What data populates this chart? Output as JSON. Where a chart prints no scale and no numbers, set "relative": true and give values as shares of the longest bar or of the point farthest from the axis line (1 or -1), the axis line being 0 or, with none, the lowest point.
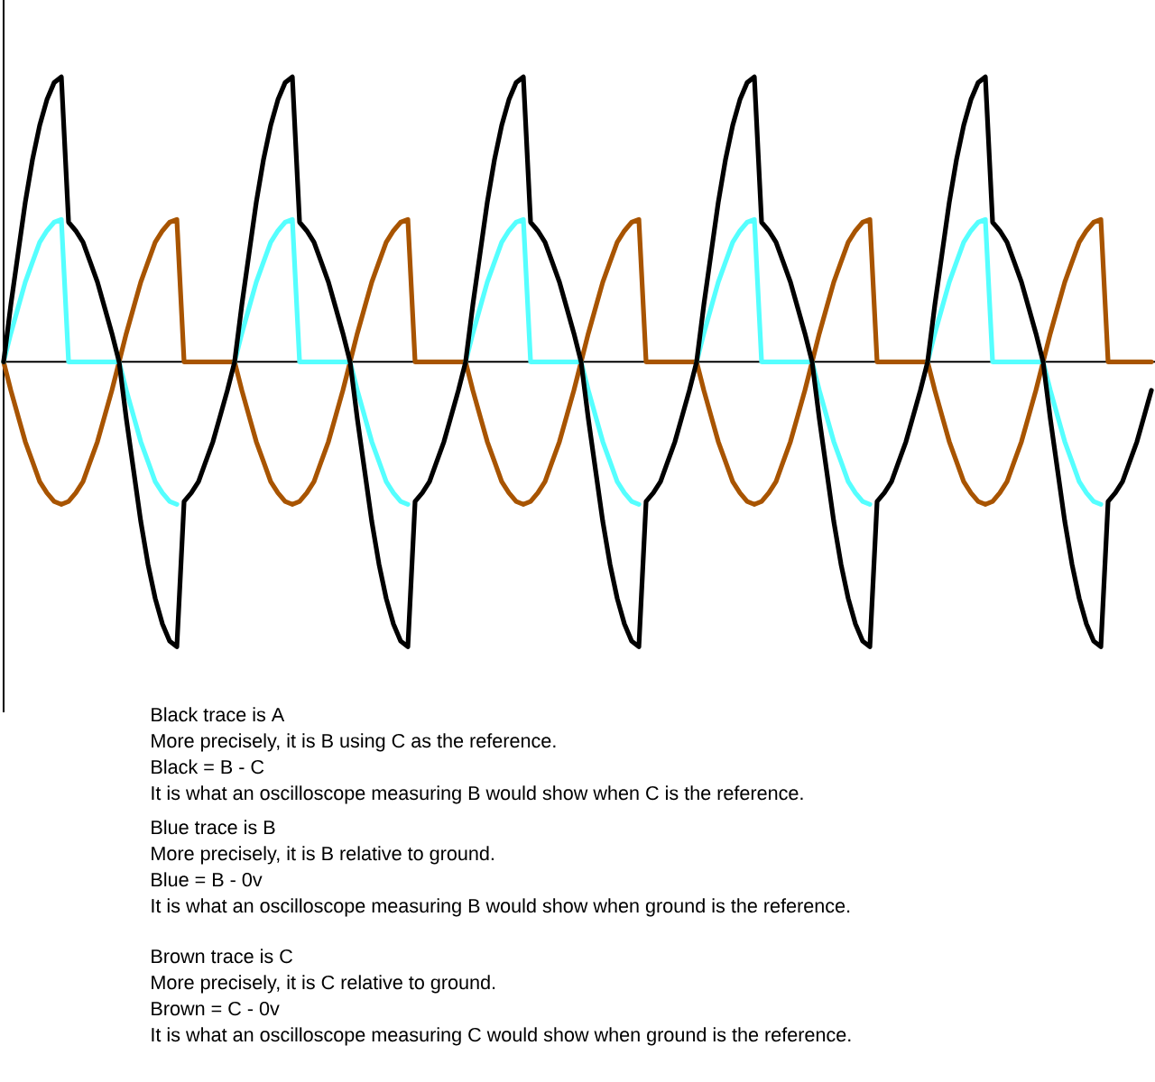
{
  "chart_data": {
    "type": "line",
    "relative": true,
    "categories": [
      null,
      null,
      null,
      null,
      null,
      null,
      null,
      null,
      null,
      null,
      null,
      null,
      null,
      null,
      null,
      null,
      null,
      null,
      null,
      null,
      null,
      null,
      null,
      null,
      null,
      null,
      null,
      null,
      null,
      null,
      null,
      null,
      null,
      null,
      null,
      null,
      null,
      null,
      null,
      null,
      null,
      null,
      null,
      null,
      null,
      null,
      null,
      null,
      null,
      null,
      null,
      null,
      null,
      null,
      null,
      null,
      null,
      null,
      null,
      null,
      null,
      null,
      null,
      null,
      null,
      null,
      null,
      null,
      null,
      null,
      null,
      null,
      null,
      null,
      null,
      null,
      null,
      null,
      null,
      null,
      null,
      null,
      null,
      null,
      null,
      null,
      null,
      null,
      null,
      null,
      null,
      null,
      null,
      null,
      null,
      null,
      null,
      null,
      null,
      null,
      null,
      null,
      null,
      null,
      null,
      null,
      null,
      null,
      null,
      null,
      null,
      null,
      null,
      null,
      null,
      null,
      null,
      null,
      null,
      null,
      null,
      null,
      null,
      null,
      null,
      null,
      null,
      null,
      null,
      null,
      null,
      null,
      null,
      null,
      null,
      null,
      null,
      null,
      null,
      null,
      null,
      null,
      null,
      null,
      null,
      null,
      null,
      null,
      null,
      null,
      null,
      null,
      null,
      null,
      null,
      null,
      null,
      null,
      null,
      null
    ],
    "series": [
      {
        "color": "#000000",
        "values": [
          0,
          0.2,
          0.38,
          0.56,
          0.71,
          0.83,
          0.92,
          0.98,
          1,
          0.49,
          0.46,
          0.42,
          0.35,
          0.28,
          0.19,
          0.1,
          0,
          -0.2,
          -0.38,
          -0.56,
          -0.71,
          -0.83,
          -0.92,
          -0.98,
          -1,
          -0.49,
          -0.46,
          -0.42,
          -0.35,
          -0.28,
          -0.19,
          -0.1,
          0,
          0.2,
          0.38,
          0.56,
          0.71,
          0.83,
          0.92,
          0.98,
          1,
          0.49,
          0.46,
          0.42,
          0.35,
          0.28,
          0.19,
          0.1,
          0,
          -0.2,
          -0.38,
          -0.56,
          -0.71,
          -0.83,
          -0.92,
          -0.98,
          -1,
          -0.49,
          -0.46,
          -0.42,
          -0.35,
          -0.28,
          -0.19,
          -0.1,
          0,
          0.2,
          0.38,
          0.56,
          0.71,
          0.83,
          0.92,
          0.98,
          1,
          0.49,
          0.46,
          0.42,
          0.35,
          0.28,
          0.19,
          0.1,
          0,
          -0.2,
          -0.38,
          -0.56,
          -0.71,
          -0.83,
          -0.92,
          -0.98,
          -1,
          -0.49,
          -0.46,
          -0.42,
          -0.35,
          -0.28,
          -0.19,
          -0.1,
          0,
          0.2,
          0.38,
          0.56,
          0.71,
          0.83,
          0.92,
          0.98,
          1,
          0.49,
          0.46,
          0.42,
          0.35,
          0.28,
          0.19,
          0.1,
          0,
          -0.2,
          -0.38,
          -0.56,
          -0.71,
          -0.83,
          -0.92,
          -0.98,
          -1,
          -0.49,
          -0.46,
          -0.42,
          -0.35,
          -0.28,
          -0.19,
          -0.1,
          0,
          0.2,
          0.38,
          0.56,
          0.71,
          0.83,
          0.92,
          0.98,
          1,
          0.49,
          0.46,
          0.42,
          0.35,
          0.28,
          0.19,
          0.1,
          0,
          -0.2,
          -0.38,
          -0.56,
          -0.71,
          -0.83,
          -0.92,
          -0.98,
          -1,
          -0.49,
          -0.46,
          -0.42,
          -0.35,
          -0.28,
          -0.19,
          -0.1
        ]
      },
      {
        "color": "#55ffff",
        "values": [
          0,
          0.1,
          0.19,
          0.28,
          0.35,
          0.42,
          0.46,
          0.49,
          0.5,
          0,
          0,
          0,
          0,
          0,
          0,
          0,
          0,
          -0.1,
          -0.19,
          -0.28,
          -0.35,
          -0.42,
          -0.46,
          -0.49,
          -0.5,
          null,
          null,
          null,
          null,
          null,
          null,
          null,
          0,
          0.1,
          0.19,
          0.28,
          0.35,
          0.42,
          0.46,
          0.49,
          0.5,
          0,
          0,
          0,
          0,
          0,
          0,
          0,
          0,
          -0.1,
          -0.19,
          -0.28,
          -0.35,
          -0.42,
          -0.46,
          -0.49,
          -0.5,
          null,
          null,
          null,
          null,
          null,
          null,
          null,
          0,
          0.1,
          0.19,
          0.28,
          0.35,
          0.42,
          0.46,
          0.49,
          0.5,
          0,
          0,
          0,
          0,
          0,
          0,
          0,
          0,
          -0.1,
          -0.19,
          -0.28,
          -0.35,
          -0.42,
          -0.46,
          -0.49,
          -0.5,
          null,
          null,
          null,
          null,
          null,
          null,
          null,
          0,
          0.1,
          0.19,
          0.28,
          0.35,
          0.42,
          0.46,
          0.49,
          0.5,
          0,
          0,
          0,
          0,
          0,
          0,
          0,
          0,
          -0.1,
          -0.19,
          -0.28,
          -0.35,
          -0.42,
          -0.46,
          -0.49,
          -0.5,
          null,
          null,
          null,
          null,
          null,
          null,
          null,
          0,
          0.1,
          0.19,
          0.28,
          0.35,
          0.42,
          0.46,
          0.49,
          0.5,
          0,
          0,
          0,
          0,
          0,
          0,
          0,
          0,
          -0.1,
          -0.19,
          -0.28,
          -0.35,
          -0.42,
          -0.46,
          -0.49,
          -0.5,
          null,
          null,
          null,
          null,
          null,
          null,
          null
        ]
      },
      {
        "color": "#a85400",
        "values": [
          0,
          -0.1,
          -0.19,
          -0.28,
          -0.35,
          -0.42,
          -0.46,
          -0.49,
          -0.5,
          -0.49,
          -0.46,
          -0.42,
          -0.35,
          -0.28,
          -0.19,
          -0.1,
          0,
          0.1,
          0.19,
          0.28,
          0.35,
          0.42,
          0.46,
          0.49,
          0.5,
          0,
          0,
          0,
          0,
          0,
          0,
          0,
          0,
          -0.1,
          -0.19,
          -0.28,
          -0.35,
          -0.42,
          -0.46,
          -0.49,
          -0.5,
          -0.49,
          -0.46,
          -0.42,
          -0.35,
          -0.28,
          -0.19,
          -0.1,
          0,
          0.1,
          0.19,
          0.28,
          0.35,
          0.42,
          0.46,
          0.49,
          0.5,
          0,
          0,
          0,
          0,
          0,
          0,
          0,
          0,
          -0.1,
          -0.19,
          -0.28,
          -0.35,
          -0.42,
          -0.46,
          -0.49,
          -0.5,
          -0.49,
          -0.46,
          -0.42,
          -0.35,
          -0.28,
          -0.19,
          -0.1,
          0,
          0.1,
          0.19,
          0.28,
          0.35,
          0.42,
          0.46,
          0.49,
          0.5,
          0,
          0,
          0,
          0,
          0,
          0,
          0,
          0,
          -0.1,
          -0.19,
          -0.28,
          -0.35,
          -0.42,
          -0.46,
          -0.49,
          -0.5,
          -0.49,
          -0.46,
          -0.42,
          -0.35,
          -0.28,
          -0.19,
          -0.1,
          0,
          0.1,
          0.19,
          0.28,
          0.35,
          0.42,
          0.46,
          0.49,
          0.5,
          0,
          0,
          0,
          0,
          0,
          0,
          0,
          0,
          -0.1,
          -0.19,
          -0.28,
          -0.35,
          -0.42,
          -0.46,
          -0.49,
          -0.5,
          -0.49,
          -0.46,
          -0.42,
          -0.35,
          -0.28,
          -0.19,
          -0.1,
          0,
          0.1,
          0.19,
          0.28,
          0.35,
          0.42,
          0.46,
          0.49,
          0.5,
          0,
          0,
          0,
          0,
          0,
          0,
          0
        ]
      }
    ],
    "annotations": [
      "Black trace is A",
      "More precisely, it is B using C as the reference.",
      "Black = B - C",
      "It is what an oscilloscope measuring B would show when C is the reference.",
      "Blue trace is B",
      "More precisely, it is B relative to ground.",
      "Blue = B - 0v",
      "It is what an oscilloscope measuring B would show when ground is the reference.",
      "Brown trace is C",
      "More precisely, it is C relative to ground.",
      "Brown = C - 0v",
      "It is what an oscilloscope measuring C would show when ground is the reference."
    ]
  }
}
